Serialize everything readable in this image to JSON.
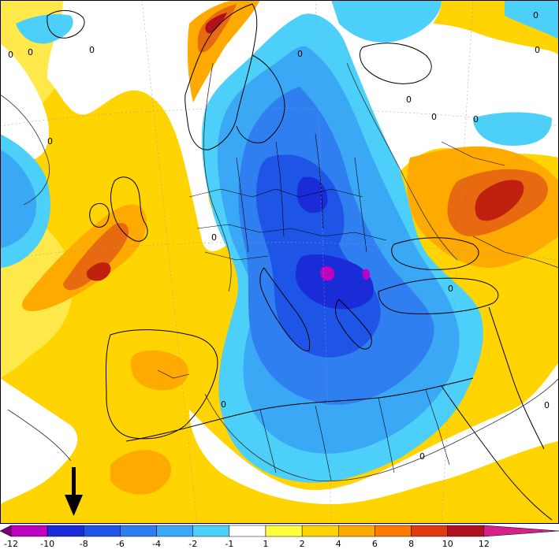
{
  "map": {
    "contour_labels": [
      "0",
      "0",
      "0",
      "0",
      "0",
      "0",
      "0",
      "0",
      "0",
      "0",
      "0",
      "0",
      "0",
      "0",
      "0"
    ],
    "marker": {
      "icon": "down-arrow-icon",
      "color": "#000000"
    }
  },
  "legend": {
    "labels": [
      "-12",
      "-10",
      "-8",
      "-6",
      "-4",
      "-2",
      "-1",
      "1",
      "2",
      "4",
      "6",
      "8",
      "10",
      "12"
    ],
    "colors": [
      "#7a007a",
      "#c000c0",
      "#1a2bd8",
      "#1f55e6",
      "#2f7ff0",
      "#3aa8f5",
      "#4ccff8",
      "#ffffff",
      "#ffff40",
      "#ffd400",
      "#ffaa00",
      "#ff7a00",
      "#e03a10",
      "#b01020",
      "#d6208a"
    ]
  },
  "palette": {
    "ocean_yellow": "#ffd400",
    "warm_orange": "#ffaa00",
    "hot_red": "#e04a10",
    "cold_blue": "#2f7ff0",
    "cold_deep": "#1a3be0",
    "cyan": "#4ccff8",
    "magenta": "#c000c0",
    "white": "#ffffff"
  }
}
